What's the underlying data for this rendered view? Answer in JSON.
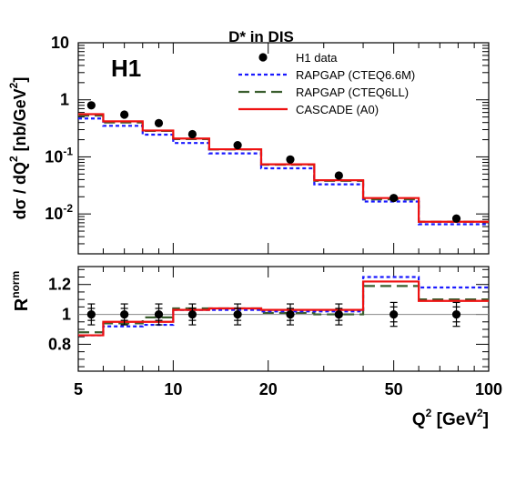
{
  "figure": {
    "title": "D* in DIS",
    "experiment_label": "H1"
  },
  "legend": {
    "position": "top-right",
    "entries": [
      {
        "key": "data",
        "label": "H1 data"
      },
      {
        "key": "rapgap_cteq66m",
        "label": "RAPGAP (CTEQ6.6M)"
      },
      {
        "key": "rapgap_cteq6ll",
        "label": "RAPGAP (CTEQ6LL)"
      },
      {
        "key": "cascade",
        "label": "CASCADE (A0)"
      }
    ]
  },
  "styles": {
    "data": {
      "color": "#000000"
    },
    "rapgap_cteq66m": {
      "color": "#1a1aff",
      "dash": "4,3"
    },
    "rapgap_cteq6ll": {
      "color": "#3a5e2e",
      "dash": "12,6"
    },
    "cascade": {
      "color": "#ee1111"
    }
  },
  "chart_data": [
    {
      "type": "line",
      "panel": "top",
      "xlabel": "Q² [GeV²]",
      "ylabel": "dσ / dQ² [nb/GeV²]",
      "xscale": "log",
      "yscale": "log",
      "xlim": [
        5,
        100
      ],
      "ylim": [
        0.002,
        10
      ],
      "bin_edges": [
        5,
        6,
        8,
        10,
        13,
        19,
        28,
        40,
        60,
        100
      ],
      "data_points": [
        {
          "x": 5.5,
          "y": 0.8
        },
        {
          "x": 7,
          "y": 0.55
        },
        {
          "x": 9,
          "y": 0.39
        },
        {
          "x": 11.5,
          "y": 0.25
        },
        {
          "x": 16,
          "y": 0.16
        },
        {
          "x": 23.5,
          "y": 0.09
        },
        {
          "x": 33.5,
          "y": 0.047
        },
        {
          "x": 50,
          "y": 0.019
        },
        {
          "x": 79,
          "y": 0.0083
        }
      ],
      "series": [
        {
          "key": "rapgap_cteq66m",
          "name": "RAPGAP (CTEQ6.6M)",
          "values": [
            0.47,
            0.35,
            0.245,
            0.175,
            0.115,
            0.063,
            0.033,
            0.0165,
            0.0066
          ]
        },
        {
          "key": "rapgap_cteq6ll",
          "name": "RAPGAP (CTEQ6LL)",
          "values": [
            0.53,
            0.4,
            0.285,
            0.205,
            0.135,
            0.073,
            0.038,
            0.018,
            0.0073
          ]
        },
        {
          "key": "cascade",
          "name": "CASCADE (A0)",
          "values": [
            0.56,
            0.42,
            0.29,
            0.21,
            0.136,
            0.074,
            0.039,
            0.019,
            0.0073
          ]
        }
      ],
      "yticks": [
        {
          "value": 10,
          "base": "10",
          "exp": ""
        },
        {
          "value": 1,
          "base": "1",
          "exp": ""
        },
        {
          "value": 0.1,
          "base": "10",
          "exp": "-1"
        },
        {
          "value": 0.01,
          "base": "10",
          "exp": "-2"
        }
      ]
    },
    {
      "type": "line",
      "panel": "bottom",
      "xlabel": "Q² [GeV²]",
      "ylabel": "R^norm",
      "xscale": "log",
      "xlim": [
        5,
        100
      ],
      "ylim": [
        0.62,
        1.32
      ],
      "reference_line": 1.0,
      "bin_edges": [
        5,
        6,
        8,
        10,
        13,
        19,
        28,
        40,
        60,
        100
      ],
      "data_points": [
        {
          "x": 5.5,
          "y": 1.0,
          "err_inner": 0.04,
          "err_outer": 0.07
        },
        {
          "x": 7,
          "y": 1.0,
          "err_inner": 0.04,
          "err_outer": 0.07
        },
        {
          "x": 9,
          "y": 1.0,
          "err_inner": 0.04,
          "err_outer": 0.07
        },
        {
          "x": 11.5,
          "y": 1.0,
          "err_inner": 0.04,
          "err_outer": 0.07
        },
        {
          "x": 16,
          "y": 1.0,
          "err_inner": 0.04,
          "err_outer": 0.07
        },
        {
          "x": 23.5,
          "y": 1.0,
          "err_inner": 0.04,
          "err_outer": 0.07
        },
        {
          "x": 33.5,
          "y": 1.0,
          "err_inner": 0.04,
          "err_outer": 0.07
        },
        {
          "x": 50,
          "y": 1.0,
          "err_inner": 0.05,
          "err_outer": 0.08
        },
        {
          "x": 79,
          "y": 1.0,
          "err_inner": 0.05,
          "err_outer": 0.08
        }
      ],
      "series": [
        {
          "key": "rapgap_cteq66m",
          "name": "RAPGAP (CTEQ6.6M)",
          "values": [
            0.86,
            0.92,
            0.93,
            1.03,
            1.03,
            1.02,
            1.02,
            1.25,
            1.18
          ]
        },
        {
          "key": "rapgap_cteq6ll",
          "name": "RAPGAP (CTEQ6LL)",
          "values": [
            0.88,
            0.94,
            0.98,
            1.04,
            1.04,
            1.01,
            1.0,
            1.19,
            1.1
          ]
        },
        {
          "key": "cascade",
          "name": "CASCADE (A0)",
          "values": [
            0.86,
            0.95,
            0.95,
            1.03,
            1.04,
            1.03,
            1.03,
            1.22,
            1.09
          ]
        }
      ],
      "yticks": [
        {
          "value": 0.8,
          "label": "0.8"
        },
        {
          "value": 1.0,
          "label": "1"
        },
        {
          "value": 1.2,
          "label": "1.2"
        }
      ]
    }
  ],
  "xticks": [
    {
      "value": 5,
      "label": "5"
    },
    {
      "value": 10,
      "label": "10"
    },
    {
      "value": 20,
      "label": "20"
    },
    {
      "value": 50,
      "label": "50"
    },
    {
      "value": 100,
      "label": "100"
    }
  ]
}
